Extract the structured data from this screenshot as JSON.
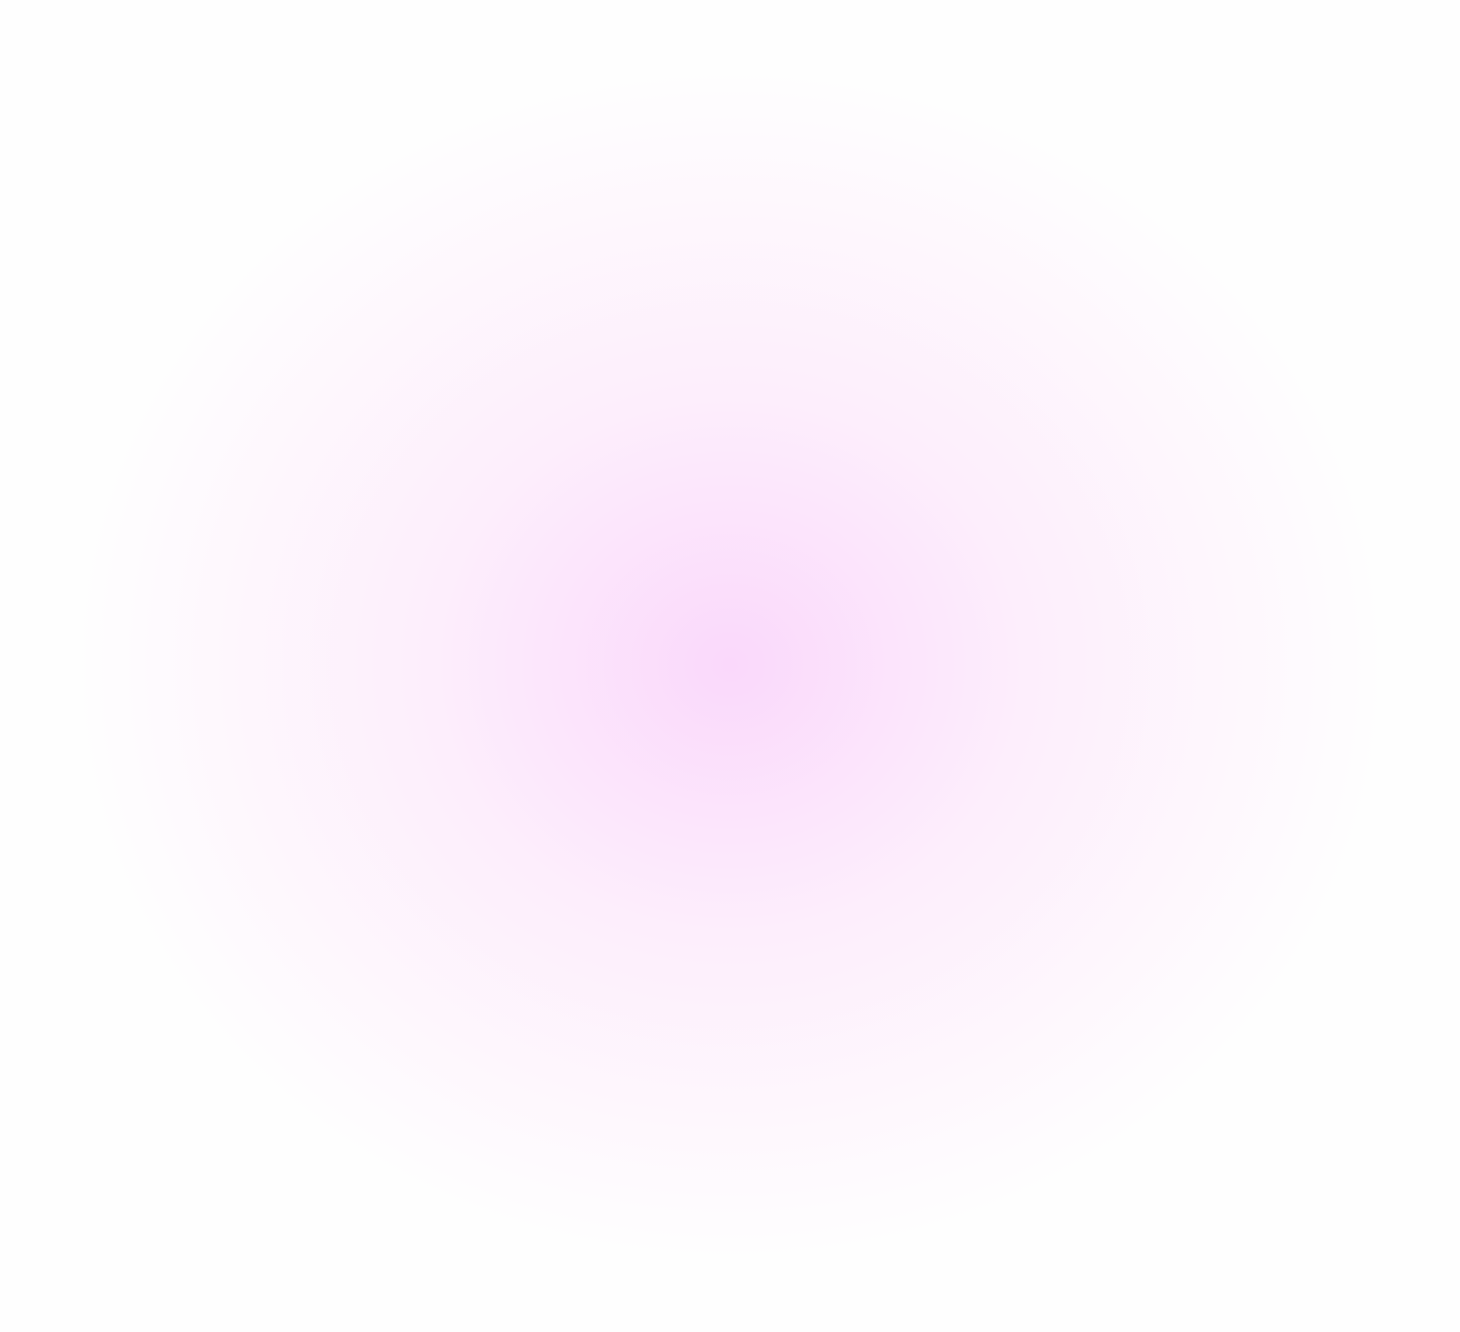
{
  "background": {
    "base_color": "#fefefe",
    "glow_center_color": "#fad8fb",
    "glow_mid_color": "#fdeefc"
  }
}
